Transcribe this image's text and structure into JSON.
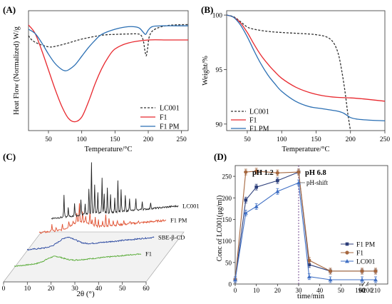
{
  "chart_data": [
    {
      "panel": "(A)",
      "type": "line",
      "xlabel": "Temperature/°C",
      "ylabel": "Heat Flow (Normalized) W/g",
      "xlim": [
        20,
        260
      ],
      "xticks": [
        "50",
        "100",
        "150",
        "200",
        "250"
      ],
      "legend": "bottom-right",
      "series": [
        {
          "name": "LC001",
          "color": "#333333",
          "dash": "3,2",
          "x": [
            20,
            25,
            35,
            50,
            60,
            80,
            100,
            130,
            150,
            170,
            185,
            190,
            193,
            195,
            197,
            199,
            202,
            210,
            230,
            260
          ],
          "y": [
            0.55,
            0.65,
            0.74,
            0.81,
            0.8,
            0.72,
            0.63,
            0.54,
            0.52,
            0.51,
            0.51,
            0.56,
            0.7,
            0.9,
            1.02,
            0.85,
            0.55,
            0.4,
            0.31,
            0.29
          ]
        },
        {
          "name": "F1",
          "color": "#e8282e",
          "x": [
            20,
            30,
            40,
            50,
            60,
            70,
            80,
            90,
            100,
            110,
            120,
            130,
            140,
            150,
            170,
            200,
            230,
            260
          ],
          "y": [
            0.3,
            0.5,
            0.9,
            1.35,
            1.8,
            2.2,
            2.48,
            2.56,
            2.45,
            2.1,
            1.68,
            1.32,
            1.05,
            0.86,
            0.72,
            0.65,
            0.65,
            0.65
          ]
        },
        {
          "name": "F1 PM",
          "color": "#2b6fb3",
          "x": [
            20,
            30,
            40,
            50,
            60,
            70,
            75,
            80,
            90,
            100,
            110,
            120,
            130,
            150,
            170,
            185,
            192,
            196,
            200,
            206,
            220,
            260
          ],
          "y": [
            0.4,
            0.5,
            0.72,
            0.98,
            1.2,
            1.34,
            1.37,
            1.35,
            1.23,
            1.03,
            0.83,
            0.66,
            0.52,
            0.4,
            0.34,
            0.36,
            0.46,
            0.52,
            0.42,
            0.34,
            0.32,
            0.32
          ]
        }
      ]
    },
    {
      "panel": "(B)",
      "type": "line",
      "xlabel": "Temperature/°C",
      "ylabel": "Weight/%",
      "xlim": [
        20,
        250
      ],
      "ylim": [
        89.4,
        100.4
      ],
      "xticks": [
        "50",
        "100",
        "150",
        "200",
        "250"
      ],
      "yticks": [
        "90",
        "95",
        "100"
      ],
      "legend": "bottom-left",
      "series": [
        {
          "name": "LC001",
          "color": "#333333",
          "dash": "3,2",
          "x": [
            20,
            30,
            40,
            50,
            60,
            80,
            100,
            130,
            150,
            165,
            175,
            182,
            187,
            192,
            196,
            200
          ],
          "y": [
            100,
            99.85,
            99.4,
            98.9,
            98.7,
            98.5,
            98.4,
            98.3,
            98.2,
            98.0,
            97.5,
            96.5,
            95.0,
            93.0,
            91.0,
            89.3
          ]
        },
        {
          "name": "F1",
          "color": "#e8282e",
          "x": [
            20,
            30,
            40,
            50,
            60,
            70,
            80,
            90,
            100,
            120,
            140,
            160,
            180,
            200,
            220,
            250
          ],
          "y": [
            100,
            99.8,
            99.3,
            98.4,
            97.3,
            96.3,
            95.5,
            94.8,
            94.2,
            93.4,
            92.9,
            92.6,
            92.45,
            92.4,
            92.3,
            92.1
          ]
        },
        {
          "name": "F1 PM",
          "color": "#2b6fb3",
          "x": [
            20,
            30,
            40,
            50,
            60,
            70,
            80,
            90,
            100,
            120,
            140,
            160,
            180,
            190,
            200,
            210,
            230,
            250
          ],
          "y": [
            100,
            99.8,
            99.1,
            98.0,
            96.7,
            95.5,
            94.5,
            93.7,
            93.0,
            92.1,
            91.6,
            91.4,
            91.2,
            91.0,
            90.6,
            90.45,
            90.35,
            90.3
          ]
        }
      ]
    },
    {
      "panel": "(C)",
      "type": "line",
      "xlabel": "2θ (°)",
      "xticks": [
        "0",
        "10",
        "20",
        "30",
        "40",
        "50",
        "60"
      ],
      "series": [
        {
          "name": "LC001",
          "color": "#222222"
        },
        {
          "name": "F1 PM",
          "color": "#e05030"
        },
        {
          "name": "SBE-β-CD",
          "color": "#2a48a0"
        },
        {
          "name": "F1",
          "color": "#55aa33"
        }
      ]
    },
    {
      "panel": "(D)",
      "type": "line",
      "xlabel": "time/min",
      "ylabel": "Conc of LC001(μg/ml)",
      "ylim": [
        0,
        275
      ],
      "yticks": [
        "0",
        "50",
        "100",
        "150",
        "200",
        "250"
      ],
      "xticks": [
        "0",
        "10",
        "20",
        "30",
        "40",
        "50",
        "60",
        "190",
        "200",
        "210"
      ],
      "legend": "bottom-right",
      "annotations": {
        "ph1": "pH 1.2",
        "ph2": "pH 6.8",
        "shift": "pH-shift"
      },
      "series": [
        {
          "name": "F1 PM",
          "color": "#2c3e7a",
          "marker": "square",
          "x": [
            0,
            5,
            10,
            20,
            30,
            35,
            45,
            60,
            210
          ],
          "y": [
            10,
            195,
            225,
            240,
            260,
            45,
            30,
            30,
            30
          ]
        },
        {
          "name": "F1",
          "color": "#a5673f",
          "marker": "circle",
          "x": [
            0,
            5,
            10,
            20,
            30,
            35,
            45,
            60,
            210
          ],
          "y": [
            10,
            260,
            262,
            258,
            260,
            55,
            30,
            30,
            30
          ]
        },
        {
          "name": "LC001",
          "color": "#3f6fc4",
          "marker": "triangle",
          "x": [
            0,
            5,
            10,
            20,
            30,
            35,
            45,
            60,
            210
          ],
          "y": [
            10,
            165,
            180,
            215,
            235,
            17,
            10,
            10,
            10
          ]
        }
      ]
    }
  ]
}
